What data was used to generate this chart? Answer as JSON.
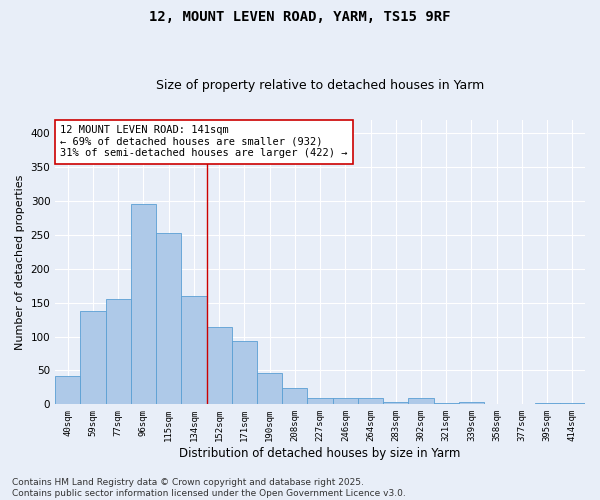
{
  "title1": "12, MOUNT LEVEN ROAD, YARM, TS15 9RF",
  "title2": "Size of property relative to detached houses in Yarm",
  "xlabel": "Distribution of detached houses by size in Yarm",
  "ylabel": "Number of detached properties",
  "categories": [
    "40sqm",
    "59sqm",
    "77sqm",
    "96sqm",
    "115sqm",
    "134sqm",
    "152sqm",
    "171sqm",
    "190sqm",
    "208sqm",
    "227sqm",
    "246sqm",
    "264sqm",
    "283sqm",
    "302sqm",
    "321sqm",
    "339sqm",
    "358sqm",
    "377sqm",
    "395sqm",
    "414sqm"
  ],
  "values": [
    42,
    138,
    155,
    295,
    253,
    160,
    114,
    93,
    46,
    24,
    10,
    9,
    9,
    4,
    10,
    2,
    4,
    1,
    0,
    2,
    2
  ],
  "bar_color": "#aec9e8",
  "bar_edge_color": "#5a9fd4",
  "vline_color": "#cc0000",
  "annotation_text": "12 MOUNT LEVEN ROAD: 141sqm\n← 69% of detached houses are smaller (932)\n31% of semi-detached houses are larger (422) →",
  "annotation_box_color": "#ffffff",
  "annotation_box_edge_color": "#cc0000",
  "ylim": [
    0,
    420
  ],
  "yticks": [
    0,
    50,
    100,
    150,
    200,
    250,
    300,
    350,
    400
  ],
  "background_color": "#e8eef8",
  "grid_color": "#ffffff",
  "footer_text": "Contains HM Land Registry data © Crown copyright and database right 2025.\nContains public sector information licensed under the Open Government Licence v3.0.",
  "title_fontsize": 10,
  "subtitle_fontsize": 9,
  "annotation_fontsize": 7.5,
  "footer_fontsize": 6.5,
  "ylabel_fontsize": 8,
  "xlabel_fontsize": 8.5
}
